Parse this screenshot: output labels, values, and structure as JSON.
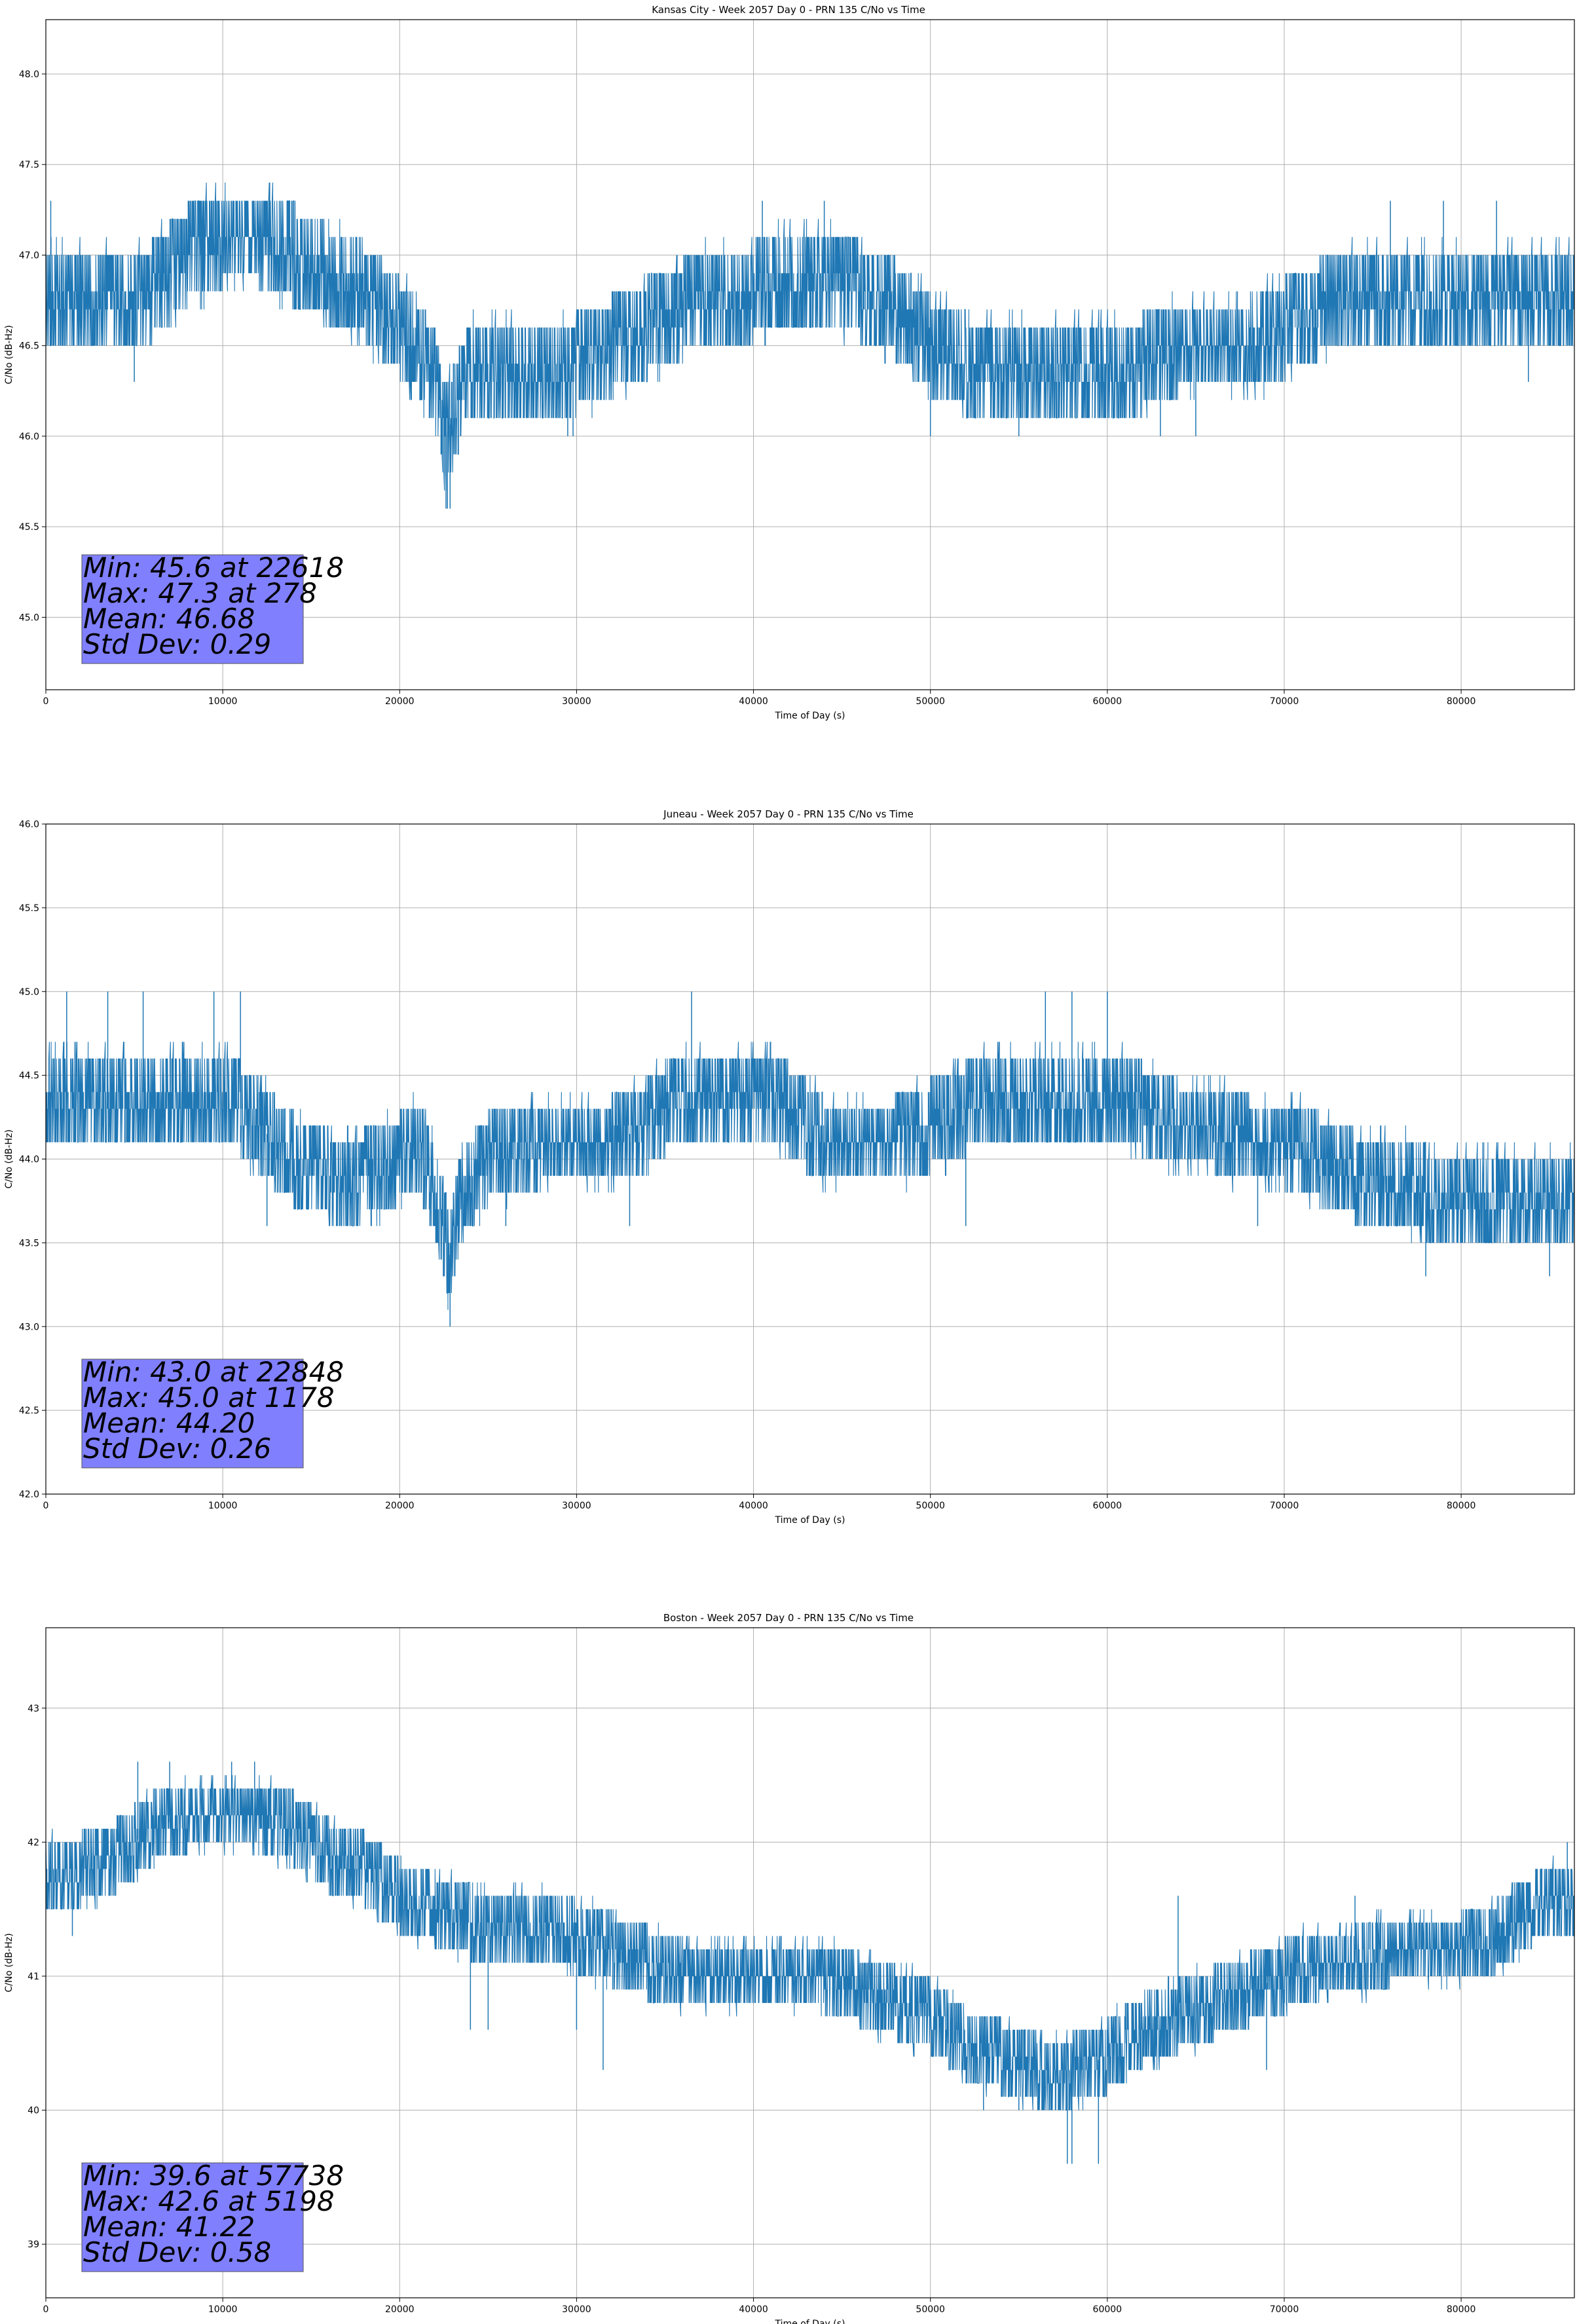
{
  "chart_data": [
    {
      "type": "line",
      "title": "Kansas City - Week 2057 Day 0 - PRN 135 C/No vs Time",
      "xlabel": "Time of Day (s)",
      "ylabel": "C/No (dB-Hz)",
      "xlim": [
        0,
        86400
      ],
      "ylim": [
        44.6,
        48.3
      ],
      "xticks": [
        0,
        10000,
        20000,
        30000,
        40000,
        50000,
        60000,
        70000,
        80000
      ],
      "yticks": [
        45.0,
        45.5,
        46.0,
        46.5,
        47.0,
        47.5,
        48.0
      ],
      "ytick_labels": [
        "45.0",
        "45.5",
        "46.0",
        "46.5",
        "47.0",
        "47.5",
        "48.0"
      ],
      "grid": true,
      "color": "#1f77b4",
      "series": [
        {
          "base": [
            [
              0,
              46.8
            ],
            [
              2000,
              46.8
            ],
            [
              4000,
              46.8
            ],
            [
              6000,
              46.8
            ],
            [
              8000,
              47.0
            ],
            [
              10000,
              47.1
            ],
            [
              12000,
              47.1
            ],
            [
              14000,
              47.0
            ],
            [
              16000,
              46.9
            ],
            [
              18000,
              46.8
            ],
            [
              20000,
              46.6
            ],
            [
              21000,
              46.5
            ],
            [
              22000,
              46.3
            ],
            [
              22600,
              46.0
            ],
            [
              23000,
              46.1
            ],
            [
              24000,
              46.4
            ],
            [
              26000,
              46.4
            ],
            [
              28000,
              46.4
            ],
            [
              30000,
              46.4
            ],
            [
              32000,
              46.5
            ],
            [
              34000,
              46.6
            ],
            [
              36000,
              46.7
            ],
            [
              38000,
              46.8
            ],
            [
              40000,
              46.8
            ],
            [
              42000,
              46.9
            ],
            [
              44000,
              46.9
            ],
            [
              46000,
              46.8
            ],
            [
              48000,
              46.7
            ],
            [
              50000,
              46.5
            ],
            [
              52000,
              46.4
            ],
            [
              54000,
              46.4
            ],
            [
              56000,
              46.4
            ],
            [
              58000,
              46.4
            ],
            [
              60000,
              46.4
            ],
            [
              62000,
              46.4
            ],
            [
              64000,
              46.5
            ],
            [
              66000,
              46.5
            ],
            [
              68000,
              46.5
            ],
            [
              70000,
              46.6
            ],
            [
              72000,
              46.7
            ],
            [
              74000,
              46.8
            ],
            [
              76000,
              46.8
            ],
            [
              78000,
              46.8
            ],
            [
              80000,
              46.8
            ],
            [
              82000,
              46.8
            ],
            [
              84000,
              46.8
            ],
            [
              86400,
              46.8
            ]
          ],
          "spikes": [
            [
              278,
              47.3
            ],
            [
              5000,
              46.3
            ],
            [
              22618,
              45.6
            ],
            [
              22700,
              45.6
            ],
            [
              22850,
              45.6
            ],
            [
              29500,
              46.0
            ],
            [
              29800,
              46.0
            ],
            [
              50000,
              46.0
            ],
            [
              55000,
              46.0
            ],
            [
              63000,
              46.0
            ],
            [
              65000,
              46.0
            ],
            [
              83800,
              46.3
            ],
            [
              40500,
              47.3
            ],
            [
              44000,
              47.3
            ],
            [
              76000,
              47.3
            ],
            [
              79000,
              47.3
            ],
            [
              82000,
              47.3
            ]
          ]
        }
      ]
    },
    {
      "type": "line",
      "title": "Juneau - Week 2057 Day 0 - PRN 135 C/No vs Time",
      "xlabel": "Time of Day (s)",
      "ylabel": "C/No (dB-Hz)",
      "xlim": [
        0,
        86400
      ],
      "ylim": [
        42.0,
        46.0
      ],
      "xticks": [
        0,
        10000,
        20000,
        30000,
        40000,
        50000,
        60000,
        70000,
        80000
      ],
      "yticks": [
        42.0,
        42.5,
        43.0,
        43.5,
        44.0,
        44.5,
        45.0,
        45.5,
        46.0
      ],
      "ytick_labels": [
        "42.0",
        "42.5",
        "43.0",
        "43.5",
        "44.0",
        "44.5",
        "45.0",
        "45.5",
        "46.0"
      ],
      "grid": true,
      "color": "#1f77b4",
      "series": [
        {
          "base": [
            [
              0,
              44.4
            ],
            [
              2000,
              44.4
            ],
            [
              4000,
              44.4
            ],
            [
              6000,
              44.4
            ],
            [
              8000,
              44.4
            ],
            [
              10000,
              44.4
            ],
            [
              12000,
              44.2
            ],
            [
              14000,
              44.0
            ],
            [
              16000,
              43.9
            ],
            [
              18000,
              43.9
            ],
            [
              20000,
              44.0
            ],
            [
              21000,
              44.1
            ],
            [
              22000,
              43.8
            ],
            [
              22800,
              43.4
            ],
            [
              23500,
              43.8
            ],
            [
              25000,
              44.0
            ],
            [
              28000,
              44.1
            ],
            [
              30000,
              44.1
            ],
            [
              32000,
              44.1
            ],
            [
              34000,
              44.2
            ],
            [
              36000,
              44.4
            ],
            [
              38000,
              44.4
            ],
            [
              40000,
              44.4
            ],
            [
              42000,
              44.3
            ],
            [
              44000,
              44.1
            ],
            [
              46000,
              44.1
            ],
            [
              48000,
              44.1
            ],
            [
              50000,
              44.2
            ],
            [
              52000,
              44.3
            ],
            [
              54000,
              44.4
            ],
            [
              56000,
              44.4
            ],
            [
              58000,
              44.4
            ],
            [
              60000,
              44.4
            ],
            [
              62000,
              44.3
            ],
            [
              64000,
              44.2
            ],
            [
              66000,
              44.2
            ],
            [
              68000,
              44.1
            ],
            [
              70000,
              44.1
            ],
            [
              72000,
              44.0
            ],
            [
              74000,
              43.9
            ],
            [
              76000,
              43.9
            ],
            [
              78000,
              43.8
            ],
            [
              80000,
              43.8
            ],
            [
              82000,
              43.8
            ],
            [
              84000,
              43.8
            ],
            [
              86400,
              43.8
            ]
          ],
          "spikes": [
            [
              1178,
              45.0
            ],
            [
              3500,
              45.0
            ],
            [
              5500,
              45.0
            ],
            [
              9500,
              45.0
            ],
            [
              11000,
              45.0
            ],
            [
              36500,
              45.0
            ],
            [
              56500,
              45.0
            ],
            [
              58000,
              45.0
            ],
            [
              60000,
              45.0
            ],
            [
              22848,
              43.0
            ],
            [
              12500,
              43.6
            ],
            [
              52000,
              43.6
            ],
            [
              68500,
              43.6
            ],
            [
              78000,
              43.3
            ],
            [
              85000,
              43.3
            ],
            [
              26000,
              43.6
            ],
            [
              33000,
              43.6
            ]
          ]
        }
      ]
    },
    {
      "type": "line",
      "title": "Boston - Week 2057 Day 0 - PRN 135 C/No vs Time",
      "xlabel": "Time of Day (s)",
      "ylabel": "C/No (dB-Hz)",
      "xlim": [
        0,
        86400
      ],
      "ylim": [
        38.6,
        43.6
      ],
      "xticks": [
        0,
        10000,
        20000,
        30000,
        40000,
        50000,
        60000,
        70000,
        80000
      ],
      "yticks": [
        39,
        40,
        41,
        42,
        43
      ],
      "ytick_labels": [
        "39",
        "40",
        "41",
        "42",
        "43"
      ],
      "grid": true,
      "color": "#1f77b4",
      "series": [
        {
          "base": [
            [
              0,
              41.8
            ],
            [
              2000,
              41.8
            ],
            [
              4000,
              41.9
            ],
            [
              6000,
              42.1
            ],
            [
              8000,
              42.2
            ],
            [
              10000,
              42.2
            ],
            [
              12000,
              42.2
            ],
            [
              14000,
              42.1
            ],
            [
              16000,
              41.9
            ],
            [
              18000,
              41.8
            ],
            [
              20000,
              41.6
            ],
            [
              22000,
              41.5
            ],
            [
              24000,
              41.4
            ],
            [
              26000,
              41.4
            ],
            [
              28000,
              41.4
            ],
            [
              30000,
              41.3
            ],
            [
              32000,
              41.2
            ],
            [
              34000,
              41.1
            ],
            [
              36000,
              41.0
            ],
            [
              38000,
              41.0
            ],
            [
              40000,
              41.0
            ],
            [
              42000,
              41.0
            ],
            [
              44000,
              41.0
            ],
            [
              46000,
              40.9
            ],
            [
              48000,
              40.8
            ],
            [
              50000,
              40.7
            ],
            [
              52000,
              40.5
            ],
            [
              54000,
              40.4
            ],
            [
              56000,
              40.3
            ],
            [
              58000,
              40.3
            ],
            [
              60000,
              40.4
            ],
            [
              62000,
              40.6
            ],
            [
              64000,
              40.7
            ],
            [
              66000,
              40.8
            ],
            [
              68000,
              40.9
            ],
            [
              70000,
              41.0
            ],
            [
              72000,
              41.1
            ],
            [
              74000,
              41.1
            ],
            [
              76000,
              41.2
            ],
            [
              78000,
              41.2
            ],
            [
              80000,
              41.2
            ],
            [
              82000,
              41.3
            ],
            [
              84000,
              41.5
            ],
            [
              86400,
              41.6
            ]
          ],
          "spikes": [
            [
              5198,
              42.6
            ],
            [
              7000,
              42.6
            ],
            [
              10500,
              42.6
            ],
            [
              11800,
              42.6
            ],
            [
              1500,
              41.3
            ],
            [
              24000,
              40.6
            ],
            [
              25000,
              40.6
            ],
            [
              30000,
              40.6
            ],
            [
              31500,
              40.3
            ],
            [
              57738,
              39.6
            ],
            [
              59500,
              39.6
            ],
            [
              58000,
              39.6
            ],
            [
              53000,
              40.0
            ],
            [
              64000,
              41.6
            ],
            [
              74000,
              41.6
            ],
            [
              83000,
              41.6
            ],
            [
              55000,
              40.0
            ],
            [
              69000,
              40.3
            ],
            [
              86000,
              42.0
            ]
          ]
        }
      ]
    }
  ],
  "stats": [
    {
      "lines": [
        "Min: 45.6 at 22618",
        "Max: 47.3 at 278",
        "Mean: 46.68",
        "Std Dev: 0.29"
      ]
    },
    {
      "lines": [
        "Min: 43.0 at 22848",
        "Max: 45.0 at 1178",
        "Mean: 44.20",
        "Std Dev: 0.26"
      ]
    },
    {
      "lines": [
        "Min: 39.6 at 57738",
        "Max: 42.6 at 5198",
        "Mean: 41.22",
        "Std Dev: 0.58"
      ]
    }
  ],
  "colors": {
    "line": "#1f77b4",
    "grid": "#b0b0b0",
    "statbox_fill": "#8080ff",
    "statbox_edge": "#555555"
  }
}
